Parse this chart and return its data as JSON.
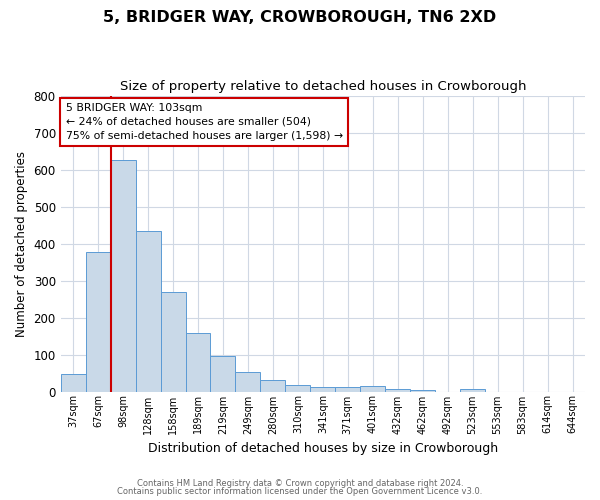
{
  "title": "5, BRIDGER WAY, CROWBOROUGH, TN6 2XD",
  "subtitle": "Size of property relative to detached houses in Crowborough",
  "xlabel": "Distribution of detached houses by size in Crowborough",
  "ylabel": "Number of detached properties",
  "footnote1": "Contains HM Land Registry data © Crown copyright and database right 2024.",
  "footnote2": "Contains public sector information licensed under the Open Government Licence v3.0.",
  "bar_labels": [
    "37sqm",
    "67sqm",
    "98sqm",
    "128sqm",
    "158sqm",
    "189sqm",
    "219sqm",
    "249sqm",
    "280sqm",
    "310sqm",
    "341sqm",
    "371sqm",
    "401sqm",
    "432sqm",
    "462sqm",
    "492sqm",
    "523sqm",
    "553sqm",
    "583sqm",
    "614sqm",
    "644sqm"
  ],
  "bar_values": [
    48,
    378,
    627,
    435,
    268,
    157,
    97,
    53,
    30,
    18,
    12,
    12,
    15,
    8,
    5,
    0,
    7,
    0,
    0,
    0,
    0
  ],
  "bar_color": "#c9d9e8",
  "bar_edge_color": "#5b9bd5",
  "grid_color": "#d0d8e4",
  "vline_x_index": 2,
  "vline_color": "#cc0000",
  "annotation_title": "5 BRIDGER WAY: 103sqm",
  "annotation_line1": "← 24% of detached houses are smaller (504)",
  "annotation_line2": "75% of semi-detached houses are larger (1,598) →",
  "annotation_box_color": "#ffffff",
  "annotation_box_edge_color": "#cc0000",
  "ylim": [
    0,
    800
  ],
  "yticks": [
    0,
    100,
    200,
    300,
    400,
    500,
    600,
    700,
    800
  ],
  "background_color": "#ffffff",
  "title_fontsize": 11.5,
  "subtitle_fontsize": 9.5
}
